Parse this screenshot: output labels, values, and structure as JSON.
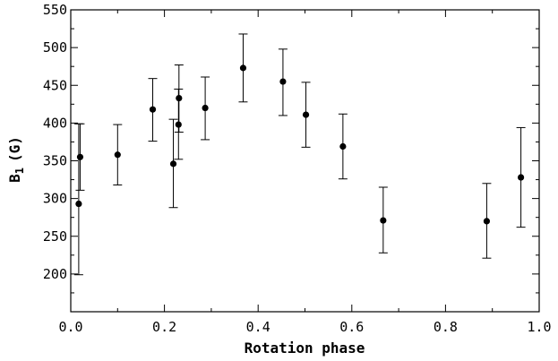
{
  "chart_data": {
    "type": "scatter",
    "title": "",
    "xlabel": "Rotation phase",
    "ylabel": "B",
    "ylabel_subscript": "1",
    "ylabel_unit": "(G)",
    "xlim": [
      0.0,
      1.0
    ],
    "ylim": [
      150,
      550
    ],
    "x_ticks": [
      0.0,
      0.2,
      0.4,
      0.6,
      0.8,
      1.0
    ],
    "x_tick_labels": [
      "0.0",
      "0.2",
      "0.4",
      "0.6",
      "0.8",
      "1.0"
    ],
    "y_ticks": [
      200,
      250,
      300,
      350,
      400,
      450,
      500,
      550
    ],
    "y_tick_labels": [
      "200",
      "250",
      "300",
      "350",
      "400",
      "450",
      "500",
      "550"
    ],
    "grid": false,
    "legend": false,
    "marker_color": "#000000",
    "series": [
      {
        "points": [
          {
            "x": 0.017,
            "y": 293,
            "lo": 199,
            "hi": 399
          },
          {
            "x": 0.02,
            "y": 355,
            "lo": 311,
            "hi": 399
          },
          {
            "x": 0.1,
            "y": 358,
            "lo": 318,
            "hi": 398
          },
          {
            "x": 0.175,
            "y": 418,
            "lo": 376,
            "hi": 459
          },
          {
            "x": 0.219,
            "y": 346,
            "lo": 288,
            "hi": 405
          },
          {
            "x": 0.23,
            "y": 398,
            "lo": 352,
            "hi": 445
          },
          {
            "x": 0.231,
            "y": 433,
            "lo": 388,
            "hi": 477
          },
          {
            "x": 0.287,
            "y": 420,
            "lo": 378,
            "hi": 461
          },
          {
            "x": 0.368,
            "y": 473,
            "lo": 428,
            "hi": 518
          },
          {
            "x": 0.453,
            "y": 455,
            "lo": 410,
            "hi": 498
          },
          {
            "x": 0.502,
            "y": 411,
            "lo": 368,
            "hi": 454
          },
          {
            "x": 0.581,
            "y": 369,
            "lo": 326,
            "hi": 412
          },
          {
            "x": 0.667,
            "y": 271,
            "lo": 228,
            "hi": 315
          },
          {
            "x": 0.888,
            "y": 270,
            "lo": 221,
            "hi": 320
          },
          {
            "x": 0.961,
            "y": 328,
            "lo": 262,
            "hi": 394
          }
        ]
      }
    ]
  }
}
